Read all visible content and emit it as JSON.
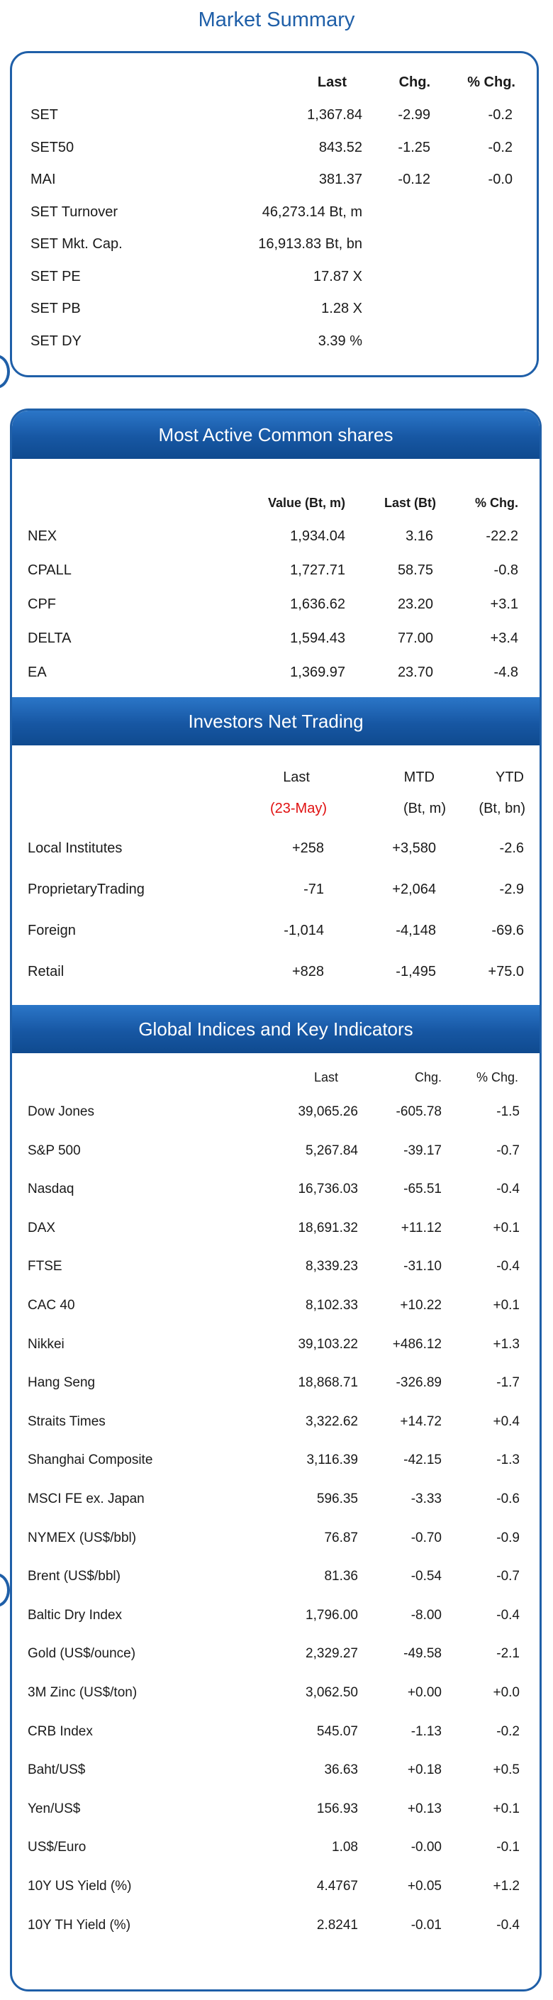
{
  "title": "Market Summary",
  "market_summary": {
    "headers": {
      "last": "Last",
      "chg": "Chg.",
      "pct": "% Chg."
    },
    "rows": [
      {
        "name": "SET",
        "last": "1,367.84",
        "chg": "-2.99",
        "pct": "-0.2"
      },
      {
        "name": "SET50",
        "last": "843.52",
        "chg": "-1.25",
        "pct": "-0.2"
      },
      {
        "name": "MAI",
        "last": "381.37",
        "chg": "-0.12",
        "pct": "-0.0"
      },
      {
        "name": "SET Turnover",
        "last": "46,273.14 Bt, m",
        "chg": "",
        "pct": ""
      },
      {
        "name": "SET Mkt. Cap.",
        "last": "16,913.83 Bt, bn",
        "chg": "",
        "pct": ""
      },
      {
        "name": "SET PE",
        "last": "17.87 X",
        "chg": "",
        "pct": ""
      },
      {
        "name": "SET PB",
        "last": "1.28 X",
        "chg": "",
        "pct": ""
      },
      {
        "name": "SET DY",
        "last": "3.39 %",
        "chg": "",
        "pct": ""
      }
    ]
  },
  "most_active": {
    "title": "Most Active Common shares",
    "headers": {
      "value": "Value (Bt, m)",
      "last": "Last (Bt)",
      "pct": "% Chg."
    },
    "rows": [
      {
        "name": "NEX",
        "value": "1,934.04",
        "last": "3.16",
        "pct": "-22.2"
      },
      {
        "name": "CPALL",
        "value": "1,727.71",
        "last": "58.75",
        "pct": "-0.8"
      },
      {
        "name": "CPF",
        "value": "1,636.62",
        "last": "23.20",
        "pct": "+3.1"
      },
      {
        "name": "DELTA",
        "value": "1,594.43",
        "last": "77.00",
        "pct": "+3.4"
      },
      {
        "name": "EA",
        "value": "1,369.97",
        "last": "23.70",
        "pct": "-4.8"
      }
    ]
  },
  "investors": {
    "title": "Investors Net Trading",
    "headers": {
      "last": "Last",
      "mtd": "MTD",
      "ytd": "YTD"
    },
    "subheaders": {
      "last": "(23-May)",
      "mtd": "(Bt, m)",
      "ytd": "(Bt, bn)"
    },
    "date_color": "#e01010",
    "rows": [
      {
        "name": "Local Institutes",
        "last": "+258",
        "mtd": "+3,580",
        "ytd": "-2.6"
      },
      {
        "name": "ProprietaryTrading",
        "last": "-71",
        "mtd": "+2,064",
        "ytd": "-2.9"
      },
      {
        "name": "Foreign",
        "last": "-1,014",
        "mtd": "-4,148",
        "ytd": "-69.6"
      },
      {
        "name": "Retail",
        "last": "+828",
        "mtd": "-1,495",
        "ytd": "+75.0"
      }
    ]
  },
  "global": {
    "title": "Global Indices and Key Indicators",
    "headers": {
      "last": "Last",
      "chg": "Chg.",
      "pct": "% Chg."
    },
    "rows": [
      {
        "name": "Dow Jones",
        "last": "39,065.26",
        "chg": "-605.78",
        "pct": "-1.5"
      },
      {
        "name": "S&P 500",
        "last": "5,267.84",
        "chg": "-39.17",
        "pct": "-0.7"
      },
      {
        "name": "Nasdaq",
        "last": "16,736.03",
        "chg": "-65.51",
        "pct": "-0.4"
      },
      {
        "name": "DAX",
        "last": "18,691.32",
        "chg": "+11.12",
        "pct": "+0.1"
      },
      {
        "name": "FTSE",
        "last": "8,339.23",
        "chg": "-31.10",
        "pct": "-0.4"
      },
      {
        "name": "CAC 40",
        "last": "8,102.33",
        "chg": "+10.22",
        "pct": "+0.1"
      },
      {
        "name": "Nikkei",
        "last": "39,103.22",
        "chg": "+486.12",
        "pct": "+1.3"
      },
      {
        "name": "Hang Seng",
        "last": "18,868.71",
        "chg": "-326.89",
        "pct": "-1.7"
      },
      {
        "name": "Straits Times",
        "last": "3,322.62",
        "chg": "+14.72",
        "pct": "+0.4"
      },
      {
        "name": "Shanghai Composite",
        "last": "3,116.39",
        "chg": "-42.15",
        "pct": "-1.3"
      },
      {
        "name": "MSCI FE ex. Japan",
        "last": "596.35",
        "chg": "-3.33",
        "pct": "-0.6"
      },
      {
        "name": "NYMEX (US$/bbl)",
        "last": "76.87",
        "chg": "-0.70",
        "pct": "-0.9"
      },
      {
        "name": "Brent (US$/bbl)",
        "last": "81.36",
        "chg": "-0.54",
        "pct": "-0.7"
      },
      {
        "name": "Baltic Dry Index",
        "last": "1,796.00",
        "chg": "-8.00",
        "pct": "-0.4"
      },
      {
        "name": "Gold (US$/ounce)",
        "last": "2,329.27",
        "chg": "-49.58",
        "pct": "-2.1"
      },
      {
        "name": "3M Zinc (US$/ton)",
        "last": "3,062.50",
        "chg": "+0.00",
        "pct": "+0.0"
      },
      {
        "name": "CRB Index",
        "last": "545.07",
        "chg": "-1.13",
        "pct": "-0.2"
      },
      {
        "name": "Baht/US$",
        "last": "36.63",
        "chg": "+0.18",
        "pct": "+0.5"
      },
      {
        "name": "Yen/US$",
        "last": "156.93",
        "chg": "+0.13",
        "pct": "+0.1"
      },
      {
        "name": "US$/Euro",
        "last": "1.08",
        "chg": "-0.00",
        "pct": "-0.1"
      },
      {
        "name": "10Y US Yield (%)",
        "last": "4.4767",
        "chg": "+0.05",
        "pct": "+1.2"
      },
      {
        "name": "10Y TH Yield (%)",
        "last": "2.8241",
        "chg": "-0.01",
        "pct": "-0.4"
      }
    ]
  },
  "accent_color": "#1f5fa8"
}
